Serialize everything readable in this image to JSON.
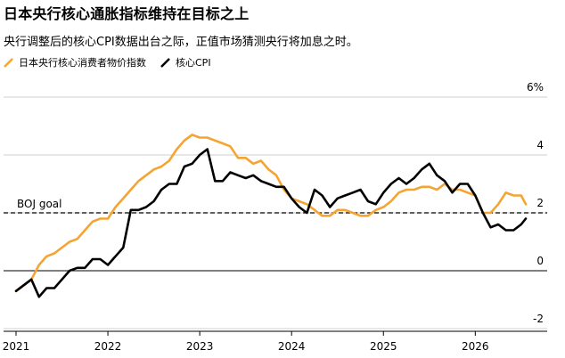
{
  "chart_data": {
    "type": "line",
    "title": "日本央行核心通胀指标维持在目标之上",
    "subtitle": "央行调整后的核心CPI数据出台之际，正值市场猜测央行将加息之时。",
    "x_ticks": [
      "2021",
      "2022",
      "2023",
      "2024",
      "2025",
      "2026"
    ],
    "y_ticks": [
      {
        "value": 6,
        "label": "6%"
      },
      {
        "value": 4,
        "label": "4"
      },
      {
        "value": 2,
        "label": "2"
      },
      {
        "value": 0,
        "label": "0"
      },
      {
        "value": -2,
        "label": "-2"
      }
    ],
    "ylim": [
      -2,
      6
    ],
    "xlim": [
      2021.0,
      2026.55
    ],
    "grid": true,
    "legend_position": "top-left",
    "reference_line": {
      "value": 2,
      "label": "BOJ goal"
    },
    "series": [
      {
        "name": "日本央行核心消费者物价指数",
        "color": "#f5a431",
        "points": [
          [
            2021.0,
            -0.7
          ],
          [
            2021.083,
            -0.5
          ],
          [
            2021.167,
            -0.3
          ],
          [
            2021.25,
            0.2
          ],
          [
            2021.333,
            0.5
          ],
          [
            2021.417,
            0.6
          ],
          [
            2021.5,
            0.8
          ],
          [
            2021.583,
            1.0
          ],
          [
            2021.667,
            1.1
          ],
          [
            2021.75,
            1.4
          ],
          [
            2021.833,
            1.7
          ],
          [
            2021.917,
            1.8
          ],
          [
            2022.0,
            1.8
          ],
          [
            2022.083,
            2.2
          ],
          [
            2022.167,
            2.5
          ],
          [
            2022.25,
            2.8
          ],
          [
            2022.333,
            3.1
          ],
          [
            2022.417,
            3.3
          ],
          [
            2022.5,
            3.5
          ],
          [
            2022.583,
            3.6
          ],
          [
            2022.667,
            3.8
          ],
          [
            2022.75,
            4.2
          ],
          [
            2022.833,
            4.5
          ],
          [
            2022.917,
            4.7
          ],
          [
            2023.0,
            4.6
          ],
          [
            2023.083,
            4.6
          ],
          [
            2023.167,
            4.5
          ],
          [
            2023.25,
            4.4
          ],
          [
            2023.333,
            4.3
          ],
          [
            2023.417,
            3.9
          ],
          [
            2023.5,
            3.9
          ],
          [
            2023.583,
            3.7
          ],
          [
            2023.667,
            3.8
          ],
          [
            2023.75,
            3.5
          ],
          [
            2023.833,
            3.3
          ],
          [
            2023.917,
            2.8
          ],
          [
            2024.0,
            2.5
          ],
          [
            2024.083,
            2.4
          ],
          [
            2024.167,
            2.3
          ],
          [
            2024.25,
            2.1
          ],
          [
            2024.333,
            1.9
          ],
          [
            2024.417,
            1.9
          ],
          [
            2024.5,
            2.1
          ],
          [
            2024.583,
            2.1
          ],
          [
            2024.667,
            2.0
          ],
          [
            2024.75,
            1.9
          ],
          [
            2024.833,
            1.9
          ],
          [
            2024.917,
            2.1
          ],
          [
            2025.0,
            2.2
          ],
          [
            2025.083,
            2.4
          ],
          [
            2025.167,
            2.7
          ],
          [
            2025.25,
            2.8
          ],
          [
            2025.333,
            2.8
          ],
          [
            2025.417,
            2.9
          ],
          [
            2025.5,
            2.9
          ],
          [
            2025.583,
            2.8
          ],
          [
            2025.667,
            3.0
          ],
          [
            2025.75,
            2.8
          ],
          [
            2025.833,
            2.8
          ],
          [
            2025.917,
            2.7
          ],
          [
            2026.0,
            2.6
          ],
          [
            2026.083,
            2.0
          ],
          [
            2026.167,
            2.0
          ],
          [
            2026.25,
            2.3
          ],
          [
            2026.333,
            2.7
          ],
          [
            2026.417,
            2.6
          ],
          [
            2026.5,
            2.6
          ],
          [
            2026.55,
            2.3
          ]
        ]
      },
      {
        "name": "核心CPI",
        "color": "#000000",
        "points": [
          [
            2021.0,
            -0.7
          ],
          [
            2021.083,
            -0.5
          ],
          [
            2021.167,
            -0.3
          ],
          [
            2021.25,
            -0.9
          ],
          [
            2021.333,
            -0.6
          ],
          [
            2021.417,
            -0.6
          ],
          [
            2021.5,
            -0.3
          ],
          [
            2021.583,
            0.0
          ],
          [
            2021.667,
            0.1
          ],
          [
            2021.75,
            0.1
          ],
          [
            2021.833,
            0.4
          ],
          [
            2021.917,
            0.4
          ],
          [
            2022.0,
            0.2
          ],
          [
            2022.083,
            0.5
          ],
          [
            2022.167,
            0.8
          ],
          [
            2022.25,
            2.1
          ],
          [
            2022.333,
            2.1
          ],
          [
            2022.417,
            2.2
          ],
          [
            2022.5,
            2.4
          ],
          [
            2022.583,
            2.8
          ],
          [
            2022.667,
            3.0
          ],
          [
            2022.75,
            3.0
          ],
          [
            2022.833,
            3.6
          ],
          [
            2022.917,
            3.7
          ],
          [
            2023.0,
            4.0
          ],
          [
            2023.083,
            4.2
          ],
          [
            2023.167,
            3.1
          ],
          [
            2023.25,
            3.1
          ],
          [
            2023.333,
            3.4
          ],
          [
            2023.417,
            3.3
          ],
          [
            2023.5,
            3.2
          ],
          [
            2023.583,
            3.3
          ],
          [
            2023.667,
            3.1
          ],
          [
            2023.75,
            3.0
          ],
          [
            2023.833,
            2.9
          ],
          [
            2023.917,
            2.9
          ],
          [
            2024.0,
            2.5
          ],
          [
            2024.083,
            2.2
          ],
          [
            2024.167,
            2.0
          ],
          [
            2024.25,
            2.8
          ],
          [
            2024.333,
            2.6
          ],
          [
            2024.417,
            2.2
          ],
          [
            2024.5,
            2.5
          ],
          [
            2024.583,
            2.6
          ],
          [
            2024.667,
            2.7
          ],
          [
            2024.75,
            2.8
          ],
          [
            2024.833,
            2.4
          ],
          [
            2024.917,
            2.3
          ],
          [
            2025.0,
            2.7
          ],
          [
            2025.083,
            3.0
          ],
          [
            2025.167,
            3.2
          ],
          [
            2025.25,
            3.0
          ],
          [
            2025.333,
            3.2
          ],
          [
            2025.417,
            3.5
          ],
          [
            2025.5,
            3.7
          ],
          [
            2025.583,
            3.3
          ],
          [
            2025.667,
            3.1
          ],
          [
            2025.75,
            2.7
          ],
          [
            2025.833,
            3.0
          ],
          [
            2025.917,
            3.0
          ],
          [
            2026.0,
            2.6
          ],
          [
            2026.083,
            2.0
          ],
          [
            2026.167,
            1.5
          ],
          [
            2026.25,
            1.6
          ],
          [
            2026.333,
            1.4
          ],
          [
            2026.417,
            1.4
          ],
          [
            2026.5,
            1.6
          ],
          [
            2026.55,
            1.8
          ]
        ]
      }
    ]
  }
}
